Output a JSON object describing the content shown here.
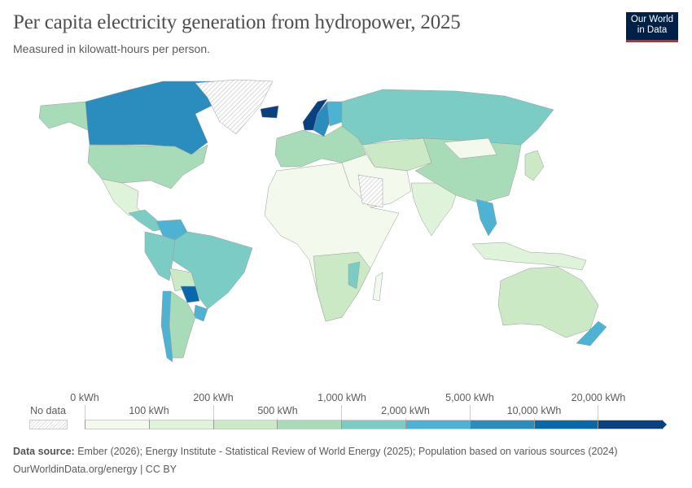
{
  "header": {
    "title": "Per capita electricity generation from hydropower, 2025",
    "subtitle": "Measured in kilowatt-hours per person.",
    "logo_text": "Our World in Data"
  },
  "legend": {
    "no_data_label": "No data",
    "upper_labels": [
      "0 kWh",
      "200 kWh",
      "1,000 kWh",
      "5,000 kWh",
      "20,000 kWh"
    ],
    "lower_labels": [
      "100 kWh",
      "500 kWh",
      "2,000 kWh",
      "10,000 kWh"
    ],
    "bins": [
      {
        "range": "0–100 kWh",
        "color": "#f3f9ed"
      },
      {
        "range": "100–200 kWh",
        "color": "#dff2da"
      },
      {
        "range": "200–500 kWh",
        "color": "#cbe9c5"
      },
      {
        "range": "500–1,000 kWh",
        "color": "#a8dbb8"
      },
      {
        "range": "1,000–2,000 kWh",
        "color": "#7accc4"
      },
      {
        "range": "2,000–5,000 kWh",
        "color": "#4eb3d3"
      },
      {
        "range": "5,000–10,000 kWh",
        "color": "#2b8cbe"
      },
      {
        "range": "10,000–20,000 kWh",
        "color": "#0868ac"
      },
      {
        "range": ">20,000 kWh",
        "color": "#084081"
      }
    ]
  },
  "footer": {
    "source_label": "Data source:",
    "source_text": " Ember (2026); Energy Institute - Statistical Review of World Energy (2025); Population based on various sources (2024)",
    "url_license": "OurWorldinData.org/energy | CC BY"
  }
}
